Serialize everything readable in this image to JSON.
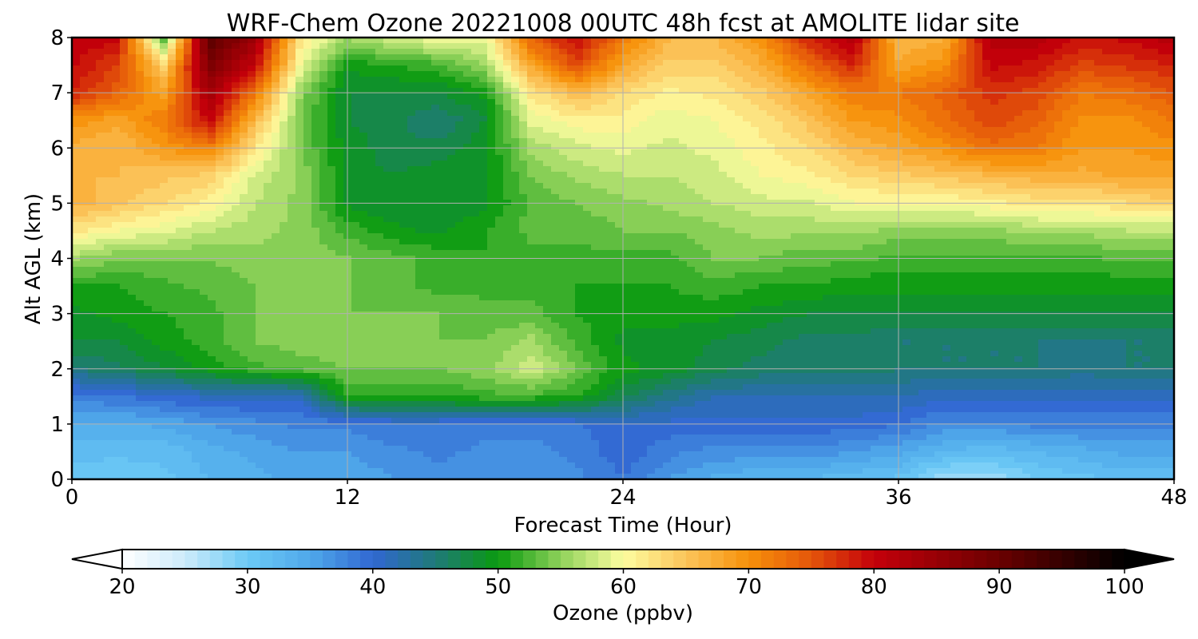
{
  "chart_data": {
    "type": "heatmap",
    "title": "WRF-Chem Ozone  20221008 00UTC 48h fcst at AMOLITE lidar site",
    "xlabel": "Forecast Time (Hour)",
    "ylabel": "Alt AGL (km)",
    "xlim": [
      0,
      48
    ],
    "ylim": [
      0,
      8
    ],
    "xticks": [
      0,
      12,
      24,
      36,
      48
    ],
    "yticks": [
      0,
      1,
      2,
      3,
      4,
      5,
      6,
      7,
      8
    ],
    "grid": true,
    "x": [
      0,
      2,
      4,
      6,
      8,
      10,
      12,
      14,
      16,
      18,
      20,
      22,
      24,
      26,
      28,
      30,
      32,
      34,
      36,
      38,
      40,
      42,
      44,
      46,
      48
    ],
    "y": [
      0,
      0.5,
      1,
      1.5,
      2,
      2.5,
      3,
      3.5,
      4,
      4.5,
      5,
      5.5,
      6,
      6.5,
      7,
      7.5,
      8
    ],
    "z": [
      [
        31,
        30,
        31,
        33,
        34,
        35,
        35,
        36,
        37,
        36,
        36,
        37,
        39,
        36,
        34,
        33,
        33,
        32,
        31,
        27,
        27,
        30,
        31,
        32,
        32
      ],
      [
        32,
        32,
        32,
        34,
        35,
        36,
        36,
        37,
        38,
        37,
        37,
        38,
        40,
        38,
        37,
        37,
        37,
        36,
        35,
        33,
        32,
        33,
        34,
        35,
        35
      ],
      [
        34,
        34,
        35,
        36,
        37,
        38,
        38,
        39,
        39,
        38,
        38,
        39,
        40,
        40,
        40,
        40,
        40,
        40,
        39,
        37,
        37,
        38,
        38,
        38,
        38
      ],
      [
        38,
        39,
        40,
        41,
        41,
        41,
        51,
        51,
        51,
        52,
        52,
        51,
        47,
        44,
        42,
        42,
        42,
        42,
        42,
        41,
        41,
        41,
        41,
        41,
        41
      ],
      [
        45,
        46,
        48,
        50,
        52,
        53,
        54,
        54,
        54,
        55,
        58,
        54,
        50,
        49,
        47,
        46,
        46,
        46,
        45,
        45,
        45,
        45,
        44,
        45,
        45
      ],
      [
        48,
        48,
        50,
        52,
        54,
        55,
        55,
        55,
        54,
        54,
        56,
        52,
        49,
        49,
        48,
        47,
        46,
        46,
        45,
        45,
        45,
        45,
        45,
        45,
        45
      ],
      [
        49,
        50,
        51,
        52,
        54,
        55,
        54,
        54,
        54,
        53,
        53,
        51,
        50,
        50,
        50,
        49,
        48,
        48,
        48,
        48,
        48,
        48,
        48,
        48,
        48
      ],
      [
        51,
        51,
        52,
        53,
        54,
        55,
        54,
        53,
        52,
        52,
        52,
        51,
        51,
        51,
        52,
        51,
        51,
        50,
        50,
        50,
        50,
        50,
        50,
        50,
        50
      ],
      [
        56,
        54,
        54,
        54,
        55,
        55,
        54,
        53,
        52,
        51,
        52,
        52,
        52,
        52,
        54,
        54,
        53,
        53,
        52,
        52,
        52,
        52,
        52,
        53,
        53
      ],
      [
        62,
        60,
        59,
        57,
        56,
        55,
        52,
        50,
        49,
        51,
        53,
        53,
        54,
        54,
        55,
        56,
        56,
        56,
        55,
        55,
        55,
        56,
        56,
        57,
        57
      ],
      [
        67,
        65,
        63,
        61,
        57,
        55,
        49,
        48,
        48,
        49,
        53,
        54,
        55,
        56,
        57,
        58,
        58,
        60,
        60,
        60,
        61,
        62,
        62,
        63,
        64
      ],
      [
        66,
        66,
        65,
        64,
        58,
        55,
        49,
        48,
        49,
        49,
        54,
        56,
        57,
        57,
        58,
        60,
        61,
        63,
        64,
        65,
        66,
        67,
        67,
        68,
        68
      ],
      [
        67,
        66,
        69,
        72,
        62,
        54,
        49,
        47,
        47,
        49,
        56,
        58,
        59,
        58,
        59,
        61,
        63,
        66,
        68,
        70,
        73,
        72,
        69,
        69,
        70
      ],
      [
        70,
        68,
        72,
        80,
        66,
        54,
        48,
        47,
        45,
        48,
        59,
        61,
        61,
        59,
        60,
        62,
        65,
        69,
        70,
        73,
        76,
        74,
        70,
        70,
        72
      ],
      [
        78,
        74,
        68,
        84,
        72,
        55,
        48,
        48,
        48,
        50,
        62,
        66,
        63,
        61,
        62,
        64,
        68,
        72,
        72,
        74,
        77,
        76,
        72,
        73,
        75
      ],
      [
        80,
        76,
        64,
        88,
        80,
        59,
        50,
        51,
        52,
        56,
        68,
        76,
        68,
        64,
        64,
        67,
        73,
        78,
        68,
        70,
        80,
        79,
        76,
        77,
        78
      ],
      [
        81,
        80,
        52,
        92,
        84,
        62,
        56,
        58,
        60,
        59,
        74,
        80,
        72,
        66,
        66,
        70,
        78,
        82,
        66,
        67,
        82,
        82,
        79,
        80,
        82
      ]
    ],
    "colorbar": {
      "label": "Ozone  (ppbv)",
      "min": 20,
      "max": 100,
      "ticks": [
        20,
        30,
        40,
        50,
        60,
        70,
        80,
        90,
        100
      ],
      "extend": "both",
      "colors": [
        {
          "v": 20,
          "c": "#ffffff"
        },
        {
          "v": 25,
          "c": "#cdebfa"
        },
        {
          "v": 30,
          "c": "#6ccaf6"
        },
        {
          "v": 35,
          "c": "#4fa8ea"
        },
        {
          "v": 40,
          "c": "#3167d2"
        },
        {
          "v": 45,
          "c": "#1f7a78"
        },
        {
          "v": 50,
          "c": "#0a9a10"
        },
        {
          "v": 55,
          "c": "#8fd25a"
        },
        {
          "v": 60,
          "c": "#fdfda0"
        },
        {
          "v": 65,
          "c": "#fbc45a"
        },
        {
          "v": 70,
          "c": "#f7910a"
        },
        {
          "v": 75,
          "c": "#e4560a"
        },
        {
          "v": 80,
          "c": "#c4000a"
        },
        {
          "v": 90,
          "c": "#6a0000"
        },
        {
          "v": 100,
          "c": "#000000"
        }
      ]
    }
  }
}
